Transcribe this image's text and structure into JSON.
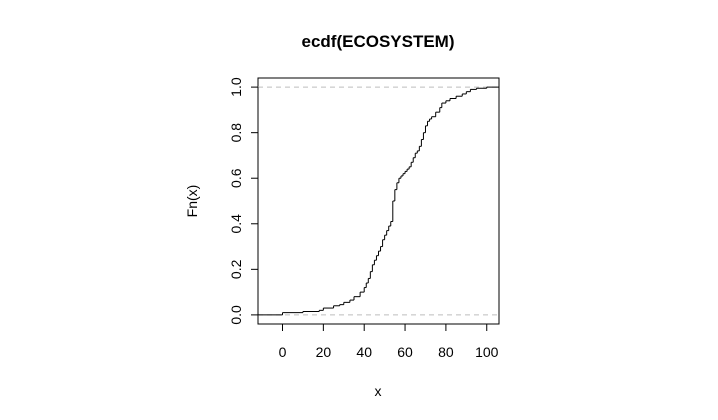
{
  "chart_data": {
    "type": "line",
    "title": "ecdf(ECOSYSTEM)",
    "xlabel": "x",
    "ylabel": "Fn(x)",
    "xlim": [
      -12,
      106
    ],
    "ylim": [
      -0.04,
      1.04
    ],
    "x_ticks": [
      0,
      20,
      40,
      60,
      80,
      100
    ],
    "y_ticks": [
      0.0,
      0.2,
      0.4,
      0.6,
      0.8,
      1.0
    ],
    "x_tick_labels": [
      "0",
      "20",
      "40",
      "60",
      "80",
      "100"
    ],
    "y_tick_labels": [
      "0.0",
      "0.2",
      "0.4",
      "0.6",
      "0.8",
      "1.0"
    ],
    "reference_lines": [
      0,
      1
    ],
    "series": [
      {
        "x": [
          0,
          10,
          18,
          20,
          25,
          28,
          30,
          33,
          35,
          38,
          40,
          41,
          42,
          43,
          44,
          45,
          46,
          47,
          48,
          49,
          50,
          51,
          52,
          53,
          54,
          55,
          56,
          57,
          58,
          59,
          60,
          61,
          62,
          63,
          64,
          65,
          66,
          67,
          68,
          69,
          70,
          71,
          72,
          73,
          75,
          77,
          78,
          80,
          82,
          85,
          88,
          90,
          92,
          95,
          100
        ],
        "y": [
          0.01,
          0.015,
          0.02,
          0.03,
          0.04,
          0.045,
          0.055,
          0.065,
          0.08,
          0.1,
          0.12,
          0.14,
          0.16,
          0.19,
          0.22,
          0.24,
          0.26,
          0.28,
          0.3,
          0.33,
          0.35,
          0.37,
          0.39,
          0.41,
          0.5,
          0.55,
          0.58,
          0.6,
          0.61,
          0.62,
          0.63,
          0.64,
          0.65,
          0.67,
          0.69,
          0.71,
          0.72,
          0.74,
          0.77,
          0.8,
          0.83,
          0.85,
          0.86,
          0.87,
          0.89,
          0.91,
          0.93,
          0.94,
          0.95,
          0.96,
          0.97,
          0.98,
          0.99,
          0.995,
          1.0
        ]
      }
    ]
  }
}
